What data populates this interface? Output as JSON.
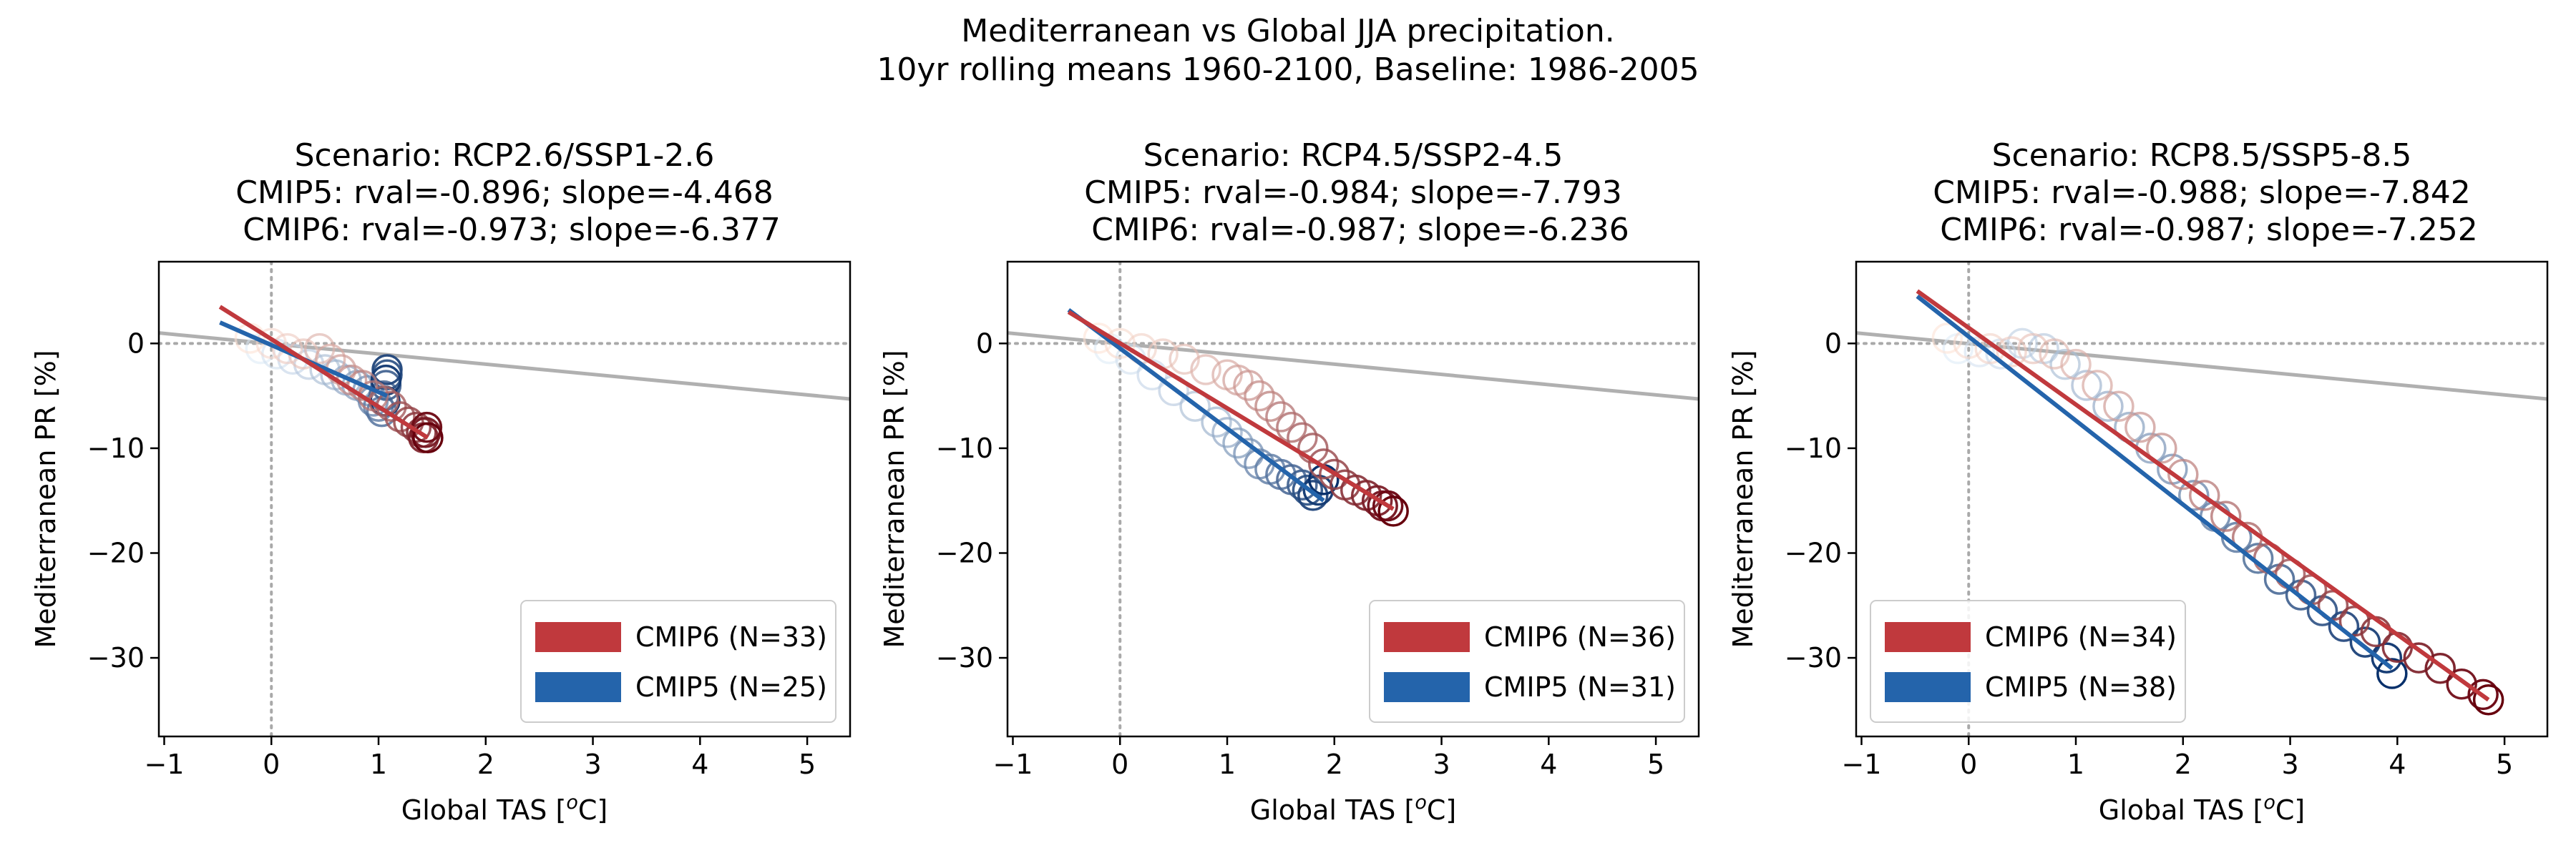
{
  "figure": {
    "title_line1": "Mediterranean vs Global JJA precipitation.",
    "title_line2": "10yr rolling means 1960-2100, Baseline: 1986-2005"
  },
  "colors": {
    "cmip6": "#c0393d",
    "cmip5": "#2464ab",
    "baseline_line": "#b0b0b0",
    "zero_lines": "#a9a9a9"
  },
  "chart_data": [
    {
      "type": "scatter",
      "title": "Scenario: RCP2.6/SSP1-2.6",
      "subtitle1": "CMIP5: rval=-0.896; slope=-4.468",
      "subtitle2": "CMIP6: rval=-0.973; slope=-6.377",
      "xlabel": "Global TAS [",
      "xlabel_sup": "o",
      "xlabel_end": "C]",
      "ylabel": "Mediterranean PR [%]",
      "xlim": [
        -1.05,
        5.4
      ],
      "ylim": [
        -37.5,
        7.8
      ],
      "xticks": [
        -1,
        0,
        1,
        2,
        3,
        4,
        5
      ],
      "xtick_labels": [
        "−1",
        "0",
        "1",
        "2",
        "3",
        "4",
        "5"
      ],
      "yticks": [
        0,
        -10,
        -20,
        -30
      ],
      "ytick_labels": [
        "0",
        "−10",
        "−20",
        "−30"
      ],
      "baseline": {
        "x": [
          -1.05,
          5.4
        ],
        "y": [
          1.0,
          -5.3
        ]
      },
      "legend_position": "lower-right",
      "legend": [
        {
          "label": "CMIP6 (N=33)",
          "series": "cmip6"
        },
        {
          "label": "CMIP5 (N=25)",
          "series": "cmip5"
        }
      ],
      "series": [
        {
          "name": "CMIP6 (N=33)",
          "key": "cmip6",
          "x": [
            -0.2,
            0.0,
            0.15,
            0.3,
            0.45,
            0.55,
            0.65,
            0.75,
            0.85,
            0.95,
            1.05,
            1.12,
            1.2,
            1.28,
            1.35,
            1.4,
            1.42,
            1.44,
            1.45,
            1.46
          ],
          "y": [
            0.5,
            0.0,
            -0.5,
            -1.0,
            -0.5,
            -1.5,
            -2.5,
            -3.5,
            -4.0,
            -5.0,
            -5.5,
            -6.0,
            -7.0,
            -7.5,
            -8.0,
            -8.5,
            -9.0,
            -8.5,
            -8.0,
            -9.0
          ],
          "fit": {
            "x": [
              -0.48,
              1.46
            ],
            "y": [
              3.5,
              -9.0
            ]
          }
        },
        {
          "name": "CMIP5 (N=25)",
          "key": "cmip5",
          "x": [
            -0.1,
            0.05,
            0.2,
            0.35,
            0.5,
            0.6,
            0.7,
            0.8,
            0.9,
            0.95,
            1.0,
            1.03,
            1.05,
            1.07,
            1.08,
            1.08,
            1.07,
            1.06
          ],
          "y": [
            -0.5,
            -1.0,
            -1.5,
            -2.0,
            -2.5,
            -3.0,
            -3.5,
            -4.0,
            -4.5,
            -5.5,
            -6.0,
            -6.5,
            -5.0,
            -4.0,
            -3.0,
            -2.5,
            -3.5,
            -5.5
          ],
          "fit": {
            "x": [
              -0.48,
              1.08
            ],
            "y": [
              2.0,
              -5.0
            ]
          }
        }
      ]
    },
    {
      "type": "scatter",
      "title": "Scenario: RCP4.5/SSP2-4.5",
      "subtitle1": "CMIP5: rval=-0.984; slope=-7.793",
      "subtitle2": "CMIP6: rval=-0.987; slope=-6.236",
      "xlabel": "Global TAS [",
      "xlabel_sup": "o",
      "xlabel_end": "C]",
      "ylabel": "Mediterranean PR [%]",
      "xlim": [
        -1.05,
        5.4
      ],
      "ylim": [
        -37.5,
        7.8
      ],
      "xticks": [
        -1,
        0,
        1,
        2,
        3,
        4,
        5
      ],
      "xtick_labels": [
        "−1",
        "0",
        "1",
        "2",
        "3",
        "4",
        "5"
      ],
      "yticks": [
        0,
        -10,
        -20,
        -30
      ],
      "ytick_labels": [
        "0",
        "−10",
        "−20",
        "−30"
      ],
      "baseline": {
        "x": [
          -1.05,
          5.4
        ],
        "y": [
          1.0,
          -5.3
        ]
      },
      "legend_position": "lower-right",
      "legend": [
        {
          "label": "CMIP6 (N=36)",
          "series": "cmip6"
        },
        {
          "label": "CMIP5 (N=31)",
          "series": "cmip5"
        }
      ],
      "series": [
        {
          "name": "CMIP6 (N=36)",
          "key": "cmip6",
          "x": [
            -0.2,
            0.0,
            0.2,
            0.4,
            0.6,
            0.8,
            1.0,
            1.1,
            1.2,
            1.3,
            1.4,
            1.5,
            1.6,
            1.7,
            1.8,
            1.9,
            2.0,
            2.1,
            2.2,
            2.3,
            2.4,
            2.45,
            2.5,
            2.55
          ],
          "y": [
            0.5,
            0.0,
            -0.5,
            -1.0,
            -1.5,
            -2.5,
            -3.0,
            -3.5,
            -4.0,
            -5.0,
            -6.0,
            -7.0,
            -8.0,
            -9.0,
            -10.0,
            -11.5,
            -12.5,
            -13.5,
            -14.0,
            -14.5,
            -15.0,
            -15.5,
            -15.5,
            -16.0
          ],
          "fit": {
            "x": [
              -0.48,
              2.55
            ],
            "y": [
              3.0,
              -15.8
            ]
          }
        },
        {
          "name": "CMIP5 (N=31)",
          "key": "cmip5",
          "x": [
            -0.1,
            0.1,
            0.3,
            0.5,
            0.7,
            0.9,
            1.0,
            1.1,
            1.2,
            1.3,
            1.4,
            1.5,
            1.6,
            1.7,
            1.75,
            1.8,
            1.85,
            1.9
          ],
          "y": [
            -0.5,
            -1.5,
            -3.0,
            -4.5,
            -6.0,
            -7.5,
            -8.5,
            -9.5,
            -10.5,
            -11.5,
            -12.0,
            -12.5,
            -13.0,
            -13.5,
            -14.0,
            -14.5,
            -14.0,
            -13.0
          ],
          "fit": {
            "x": [
              -0.48,
              1.9
            ],
            "y": [
              3.2,
              -15.0
            ]
          }
        }
      ]
    },
    {
      "type": "scatter",
      "title": "Scenario: RCP8.5/SSP5-8.5",
      "subtitle1": "CMIP5: rval=-0.988; slope=-7.842",
      "subtitle2": "CMIP6: rval=-0.987; slope=-7.252",
      "xlabel": "Global TAS [",
      "xlabel_sup": "o",
      "xlabel_end": "C]",
      "ylabel": "Mediterranean PR [%]",
      "xlim": [
        -1.05,
        5.4
      ],
      "ylim": [
        -37.5,
        7.8
      ],
      "xticks": [
        -1,
        0,
        1,
        2,
        3,
        4,
        5
      ],
      "xtick_labels": [
        "−1",
        "0",
        "1",
        "2",
        "3",
        "4",
        "5"
      ],
      "yticks": [
        0,
        -10,
        -20,
        -30
      ],
      "ytick_labels": [
        "0",
        "−10",
        "−20",
        "−30"
      ],
      "baseline": {
        "x": [
          -1.05,
          5.4
        ],
        "y": [
          1.0,
          -5.3
        ]
      },
      "legend_position": "lower-left",
      "legend": [
        {
          "label": "CMIP6 (N=34)",
          "series": "cmip6"
        },
        {
          "label": "CMIP5 (N=38)",
          "series": "cmip5"
        }
      ],
      "series": [
        {
          "name": "CMIP6 (N=34)",
          "key": "cmip6",
          "x": [
            -0.2,
            0.0,
            0.2,
            0.4,
            0.6,
            0.8,
            1.0,
            1.2,
            1.4,
            1.6,
            1.8,
            2.0,
            2.2,
            2.4,
            2.6,
            2.8,
            3.0,
            3.2,
            3.4,
            3.6,
            3.8,
            4.0,
            4.2,
            4.4,
            4.6,
            4.8,
            4.85
          ],
          "y": [
            0.5,
            0.0,
            -0.5,
            -0.8,
            -0.5,
            -1.0,
            -2.0,
            -4.0,
            -6.0,
            -8.0,
            -10.0,
            -12.5,
            -14.5,
            -16.5,
            -18.5,
            -20.5,
            -22.0,
            -23.5,
            -25.0,
            -26.5,
            -27.5,
            -29.0,
            -30.0,
            -31.0,
            -32.5,
            -33.5,
            -34.0
          ],
          "fit": {
            "x": [
              -0.48,
              4.85
            ],
            "y": [
              5.0,
              -34.0
            ]
          }
        },
        {
          "name": "CMIP5 (N=38)",
          "key": "cmip5",
          "x": [
            -0.1,
            0.1,
            0.3,
            0.5,
            0.7,
            0.9,
            1.1,
            1.3,
            1.5,
            1.7,
            1.9,
            2.1,
            2.3,
            2.5,
            2.7,
            2.9,
            3.1,
            3.3,
            3.5,
            3.7,
            3.9,
            3.95
          ],
          "y": [
            -0.5,
            -0.8,
            -1.0,
            0.0,
            -0.5,
            -2.0,
            -4.0,
            -6.0,
            -8.0,
            -10.0,
            -12.0,
            -14.5,
            -16.5,
            -18.5,
            -20.5,
            -22.5,
            -24.0,
            -25.5,
            -27.0,
            -28.5,
            -30.0,
            -31.5
          ],
          "fit": {
            "x": [
              -0.48,
              3.95
            ],
            "y": [
              4.5,
              -31.0
            ]
          }
        }
      ]
    }
  ]
}
